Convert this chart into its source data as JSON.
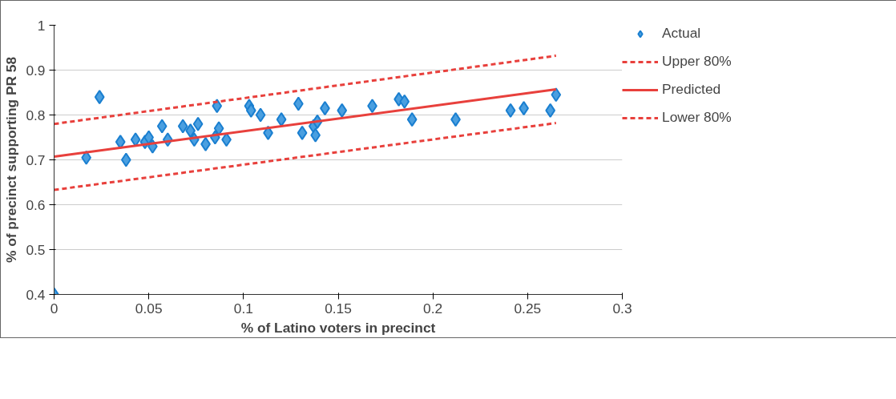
{
  "chart_data": {
    "type": "scatter",
    "xlabel": "% of Latino voters in precinct",
    "ylabel": "% of precinct supporting PR 58",
    "xlim": [
      0,
      0.3
    ],
    "xticks": [
      0,
      0.05,
      0.1,
      0.15,
      0.2,
      0.25,
      0.3
    ],
    "ylim": [
      0.4,
      1
    ],
    "yticks": [
      0.4,
      0.5,
      0.6,
      0.7,
      0.8,
      0.9,
      1
    ],
    "grid": "y",
    "legend": "right",
    "series": [
      {
        "name": "Actual",
        "type": "scatter",
        "marker": "diamond",
        "color": "#4a9fe0",
        "x": [
          0,
          0.017,
          0.024,
          0.035,
          0.038,
          0.043,
          0.048,
          0.05,
          0.052,
          0.057,
          0.06,
          0.068,
          0.072,
          0.074,
          0.076,
          0.08,
          0.085,
          0.086,
          0.087,
          0.091,
          0.103,
          0.104,
          0.109,
          0.113,
          0.12,
          0.129,
          0.131,
          0.137,
          0.138,
          0.139,
          0.143,
          0.152,
          0.168,
          0.182,
          0.185,
          0.189,
          0.212,
          0.241,
          0.248,
          0.262,
          0.265
        ],
        "values": [
          0.4,
          0.705,
          0.84,
          0.74,
          0.7,
          0.745,
          0.74,
          0.75,
          0.73,
          0.775,
          0.745,
          0.775,
          0.765,
          0.745,
          0.78,
          0.735,
          0.75,
          0.82,
          0.77,
          0.745,
          0.82,
          0.81,
          0.8,
          0.76,
          0.79,
          0.825,
          0.76,
          0.775,
          0.755,
          0.785,
          0.815,
          0.81,
          0.82,
          0.835,
          0.83,
          0.79,
          0.79,
          0.81,
          0.815,
          0.81,
          0.845
        ]
      },
      {
        "name": "Upper 80%",
        "type": "line",
        "line_style": "dashed",
        "color": "#e8403c",
        "x": [
          0,
          0.265
        ],
        "values": [
          0.78,
          0.932
        ]
      },
      {
        "name": "Predicted",
        "type": "line",
        "line_style": "solid",
        "color": "#e8403c",
        "x": [
          0,
          0.265
        ],
        "values": [
          0.707,
          0.857
        ]
      },
      {
        "name": "Lower 80%",
        "type": "line",
        "line_style": "dashed",
        "color": "#e8403c",
        "x": [
          0,
          0.265
        ],
        "values": [
          0.633,
          0.782
        ]
      }
    ]
  }
}
